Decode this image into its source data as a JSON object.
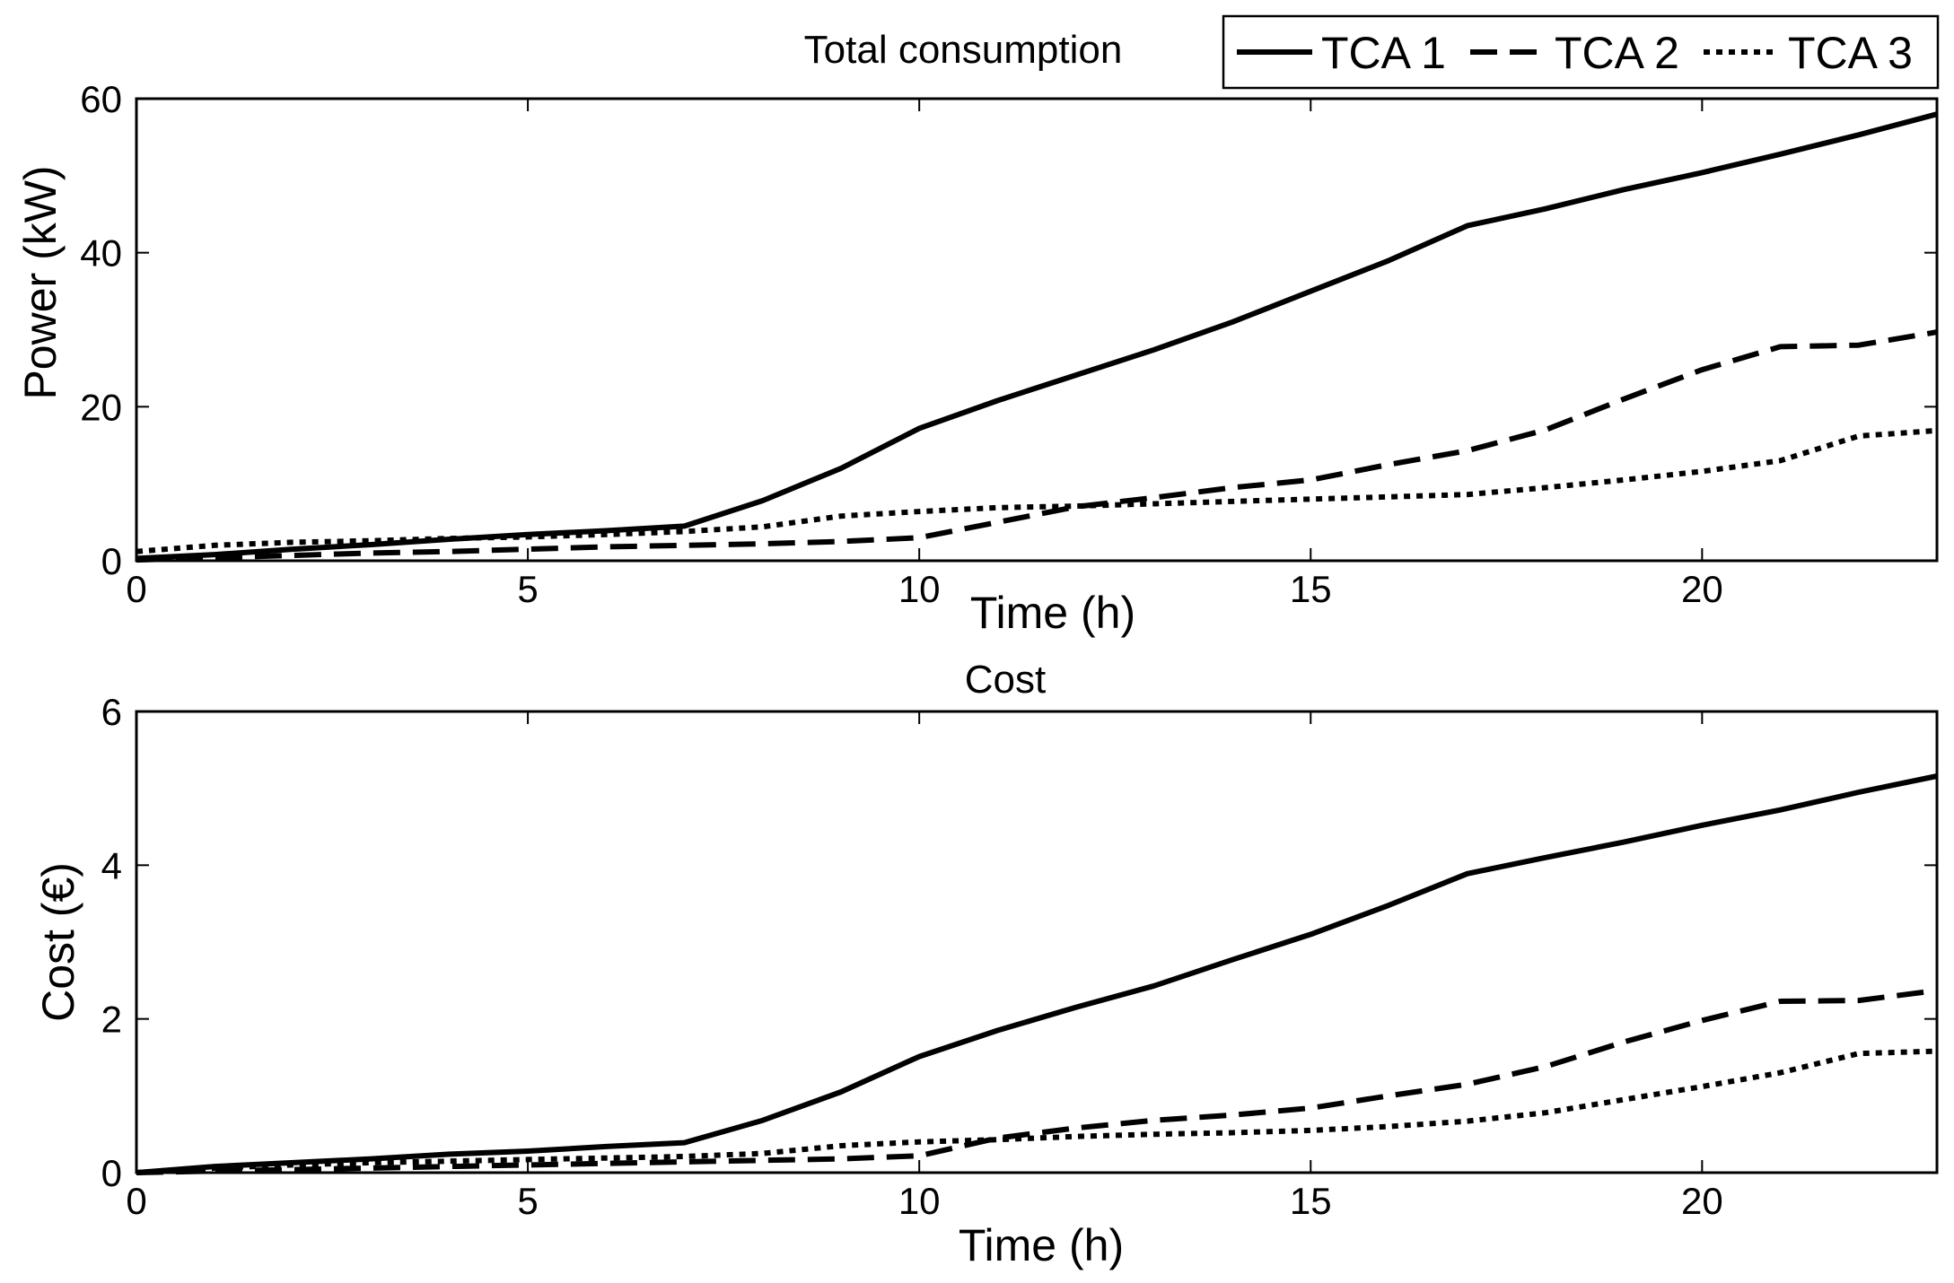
{
  "chart_data": [
    {
      "type": "line",
      "title": "Total consumption",
      "xlabel": "Time (h)",
      "ylabel": "Power (kW)",
      "xlim": [
        0,
        23
      ],
      "ylim": [
        0,
        60
      ],
      "xticks": [
        0,
        5,
        10,
        15,
        20
      ],
      "yticks": [
        0,
        20,
        40,
        60
      ],
      "grid": false,
      "x": [
        0,
        1,
        2,
        3,
        4,
        5,
        6,
        7,
        8,
        9,
        10,
        11,
        12,
        13,
        14,
        15,
        16,
        17,
        18,
        19,
        20,
        21,
        22,
        23
      ],
      "series": [
        {
          "name": "TCA 1",
          "style": "solid",
          "values": [
            0.3,
            0.8,
            1.5,
            2.1,
            2.8,
            3.4,
            3.9,
            4.5,
            7.8,
            12.0,
            17.2,
            20.8,
            24.1,
            27.4,
            31.0,
            35.0,
            39.0,
            43.5,
            45.7,
            48.2,
            50.4,
            52.8,
            55.3,
            58.0
          ]
        },
        {
          "name": "TCA 2",
          "style": "dashed",
          "values": [
            0.1,
            0.4,
            0.7,
            1.0,
            1.2,
            1.5,
            1.8,
            2.0,
            2.2,
            2.5,
            3.0,
            5.0,
            7.0,
            8.2,
            9.5,
            10.5,
            12.5,
            14.3,
            17.0,
            21.0,
            24.8,
            27.8,
            28.0,
            29.7
          ]
        },
        {
          "name": "TCA 3",
          "style": "dotted",
          "values": [
            1.2,
            2.0,
            2.4,
            2.6,
            2.9,
            3.1,
            3.4,
            3.8,
            4.4,
            5.8,
            6.4,
            6.9,
            7.1,
            7.4,
            7.7,
            8.0,
            8.3,
            8.6,
            9.5,
            10.5,
            11.6,
            13.0,
            16.2,
            16.9
          ]
        }
      ]
    },
    {
      "type": "line",
      "title": "Cost",
      "xlabel": "Time (h)",
      "ylabel": "Cost (€)",
      "xlim": [
        0,
        23
      ],
      "ylim": [
        0,
        6
      ],
      "xticks": [
        0,
        5,
        10,
        15,
        20
      ],
      "yticks": [
        0,
        2,
        4,
        6
      ],
      "grid": false,
      "x": [
        0,
        1,
        2,
        3,
        4,
        5,
        6,
        7,
        8,
        9,
        10,
        11,
        12,
        13,
        14,
        15,
        16,
        17,
        18,
        19,
        20,
        21,
        22,
        23
      ],
      "series": [
        {
          "name": "TCA 1",
          "style": "solid",
          "values": [
            0.0,
            0.08,
            0.13,
            0.18,
            0.24,
            0.28,
            0.34,
            0.39,
            0.68,
            1.05,
            1.51,
            1.85,
            2.15,
            2.43,
            2.77,
            3.1,
            3.48,
            3.89,
            4.1,
            4.3,
            4.52,
            4.72,
            4.95,
            5.16
          ]
        },
        {
          "name": "TCA 2",
          "style": "dashed",
          "values": [
            0.0,
            0.02,
            0.04,
            0.06,
            0.08,
            0.1,
            0.12,
            0.14,
            0.16,
            0.18,
            0.22,
            0.45,
            0.58,
            0.68,
            0.75,
            0.84,
            1.0,
            1.15,
            1.38,
            1.7,
            1.98,
            2.23,
            2.24,
            2.37
          ]
        },
        {
          "name": "TCA 3",
          "style": "dotted",
          "values": [
            0.0,
            0.06,
            0.1,
            0.13,
            0.15,
            0.17,
            0.19,
            0.21,
            0.25,
            0.35,
            0.4,
            0.43,
            0.47,
            0.5,
            0.52,
            0.55,
            0.6,
            0.67,
            0.78,
            0.95,
            1.12,
            1.3,
            1.55,
            1.58
          ]
        }
      ]
    }
  ],
  "legend": {
    "placement": "top-right",
    "entries": [
      {
        "label": "TCA 1",
        "style": "solid"
      },
      {
        "label": "TCA 2",
        "style": "dashed"
      },
      {
        "label": "TCA 3",
        "style": "dotted"
      }
    ]
  }
}
